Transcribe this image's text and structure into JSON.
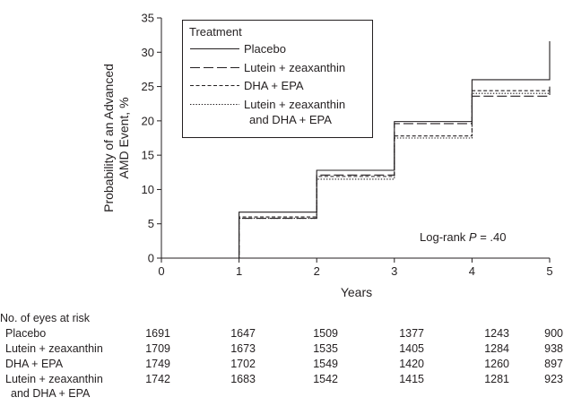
{
  "chart_data": {
    "type": "line",
    "step": true,
    "title": "",
    "xlabel": "Years",
    "ylabel_lines": [
      "Probability of an Advanced",
      "AMD Event, %"
    ],
    "xlim": [
      0,
      5
    ],
    "ylim": [
      0,
      35
    ],
    "xticks": [
      "0",
      "1",
      "2",
      "3",
      "4",
      "5"
    ],
    "yticks": [
      "0",
      "5",
      "10",
      "15",
      "20",
      "25",
      "30",
      "35"
    ],
    "grid": false,
    "legend": {
      "title": "Treatment",
      "position": "top-left"
    },
    "series": [
      {
        "name": "Placebo",
        "name_lines": [
          "Placebo"
        ],
        "dash": "solid",
        "x": [
          0,
          1,
          2,
          3,
          4,
          5
        ],
        "y": [
          0,
          6.7,
          12.8,
          19.9,
          26.0,
          31.6
        ]
      },
      {
        "name": "Lutein + zeaxanthin",
        "name_lines": [
          "Lutein + zeaxanthin"
        ],
        "dash": "longdash",
        "x": [
          0,
          1,
          2,
          3,
          4,
          5
        ],
        "y": [
          0,
          5.8,
          12.1,
          19.6,
          23.6,
          25.0
        ]
      },
      {
        "name": "DHA + EPA",
        "name_lines": [
          "DHA + EPA"
        ],
        "dash": "shortdash",
        "x": [
          0,
          1,
          2,
          3,
          4,
          5
        ],
        "y": [
          0,
          6.0,
          11.9,
          17.8,
          24.4,
          24.8
        ]
      },
      {
        "name": "Lutein + zeaxanthin and DHA + EPA",
        "name_lines": [
          "Lutein + zeaxanthin",
          "and DHA + EPA"
        ],
        "dash": "dotted",
        "x": [
          0,
          1,
          2,
          3,
          4,
          5
        ],
        "y": [
          0,
          5.8,
          11.5,
          17.5,
          24.0,
          24.3
        ]
      }
    ],
    "annotation": {
      "prefix": "Log-rank ",
      "italic": "P",
      "suffix": " = .40"
    }
  },
  "risk_table": {
    "header": "No. of eyes at risk",
    "rows": [
      {
        "label_lines": [
          "Placebo"
        ],
        "values": [
          "1691",
          "1647",
          "1509",
          "1377",
          "1243",
          "900"
        ]
      },
      {
        "label_lines": [
          "Lutein + zeaxanthin"
        ],
        "values": [
          "1709",
          "1673",
          "1535",
          "1405",
          "1284",
          "938"
        ]
      },
      {
        "label_lines": [
          "DHA + EPA"
        ],
        "values": [
          "1749",
          "1702",
          "1549",
          "1420",
          "1260",
          "897"
        ]
      },
      {
        "label_lines": [
          "Lutein + zeaxanthin",
          "and DHA + EPA"
        ],
        "values": [
          "1742",
          "1683",
          "1542",
          "1415",
          "1281",
          "923"
        ]
      }
    ]
  },
  "colors": {
    "ink": "#231f20",
    "background": "#ffffff"
  }
}
